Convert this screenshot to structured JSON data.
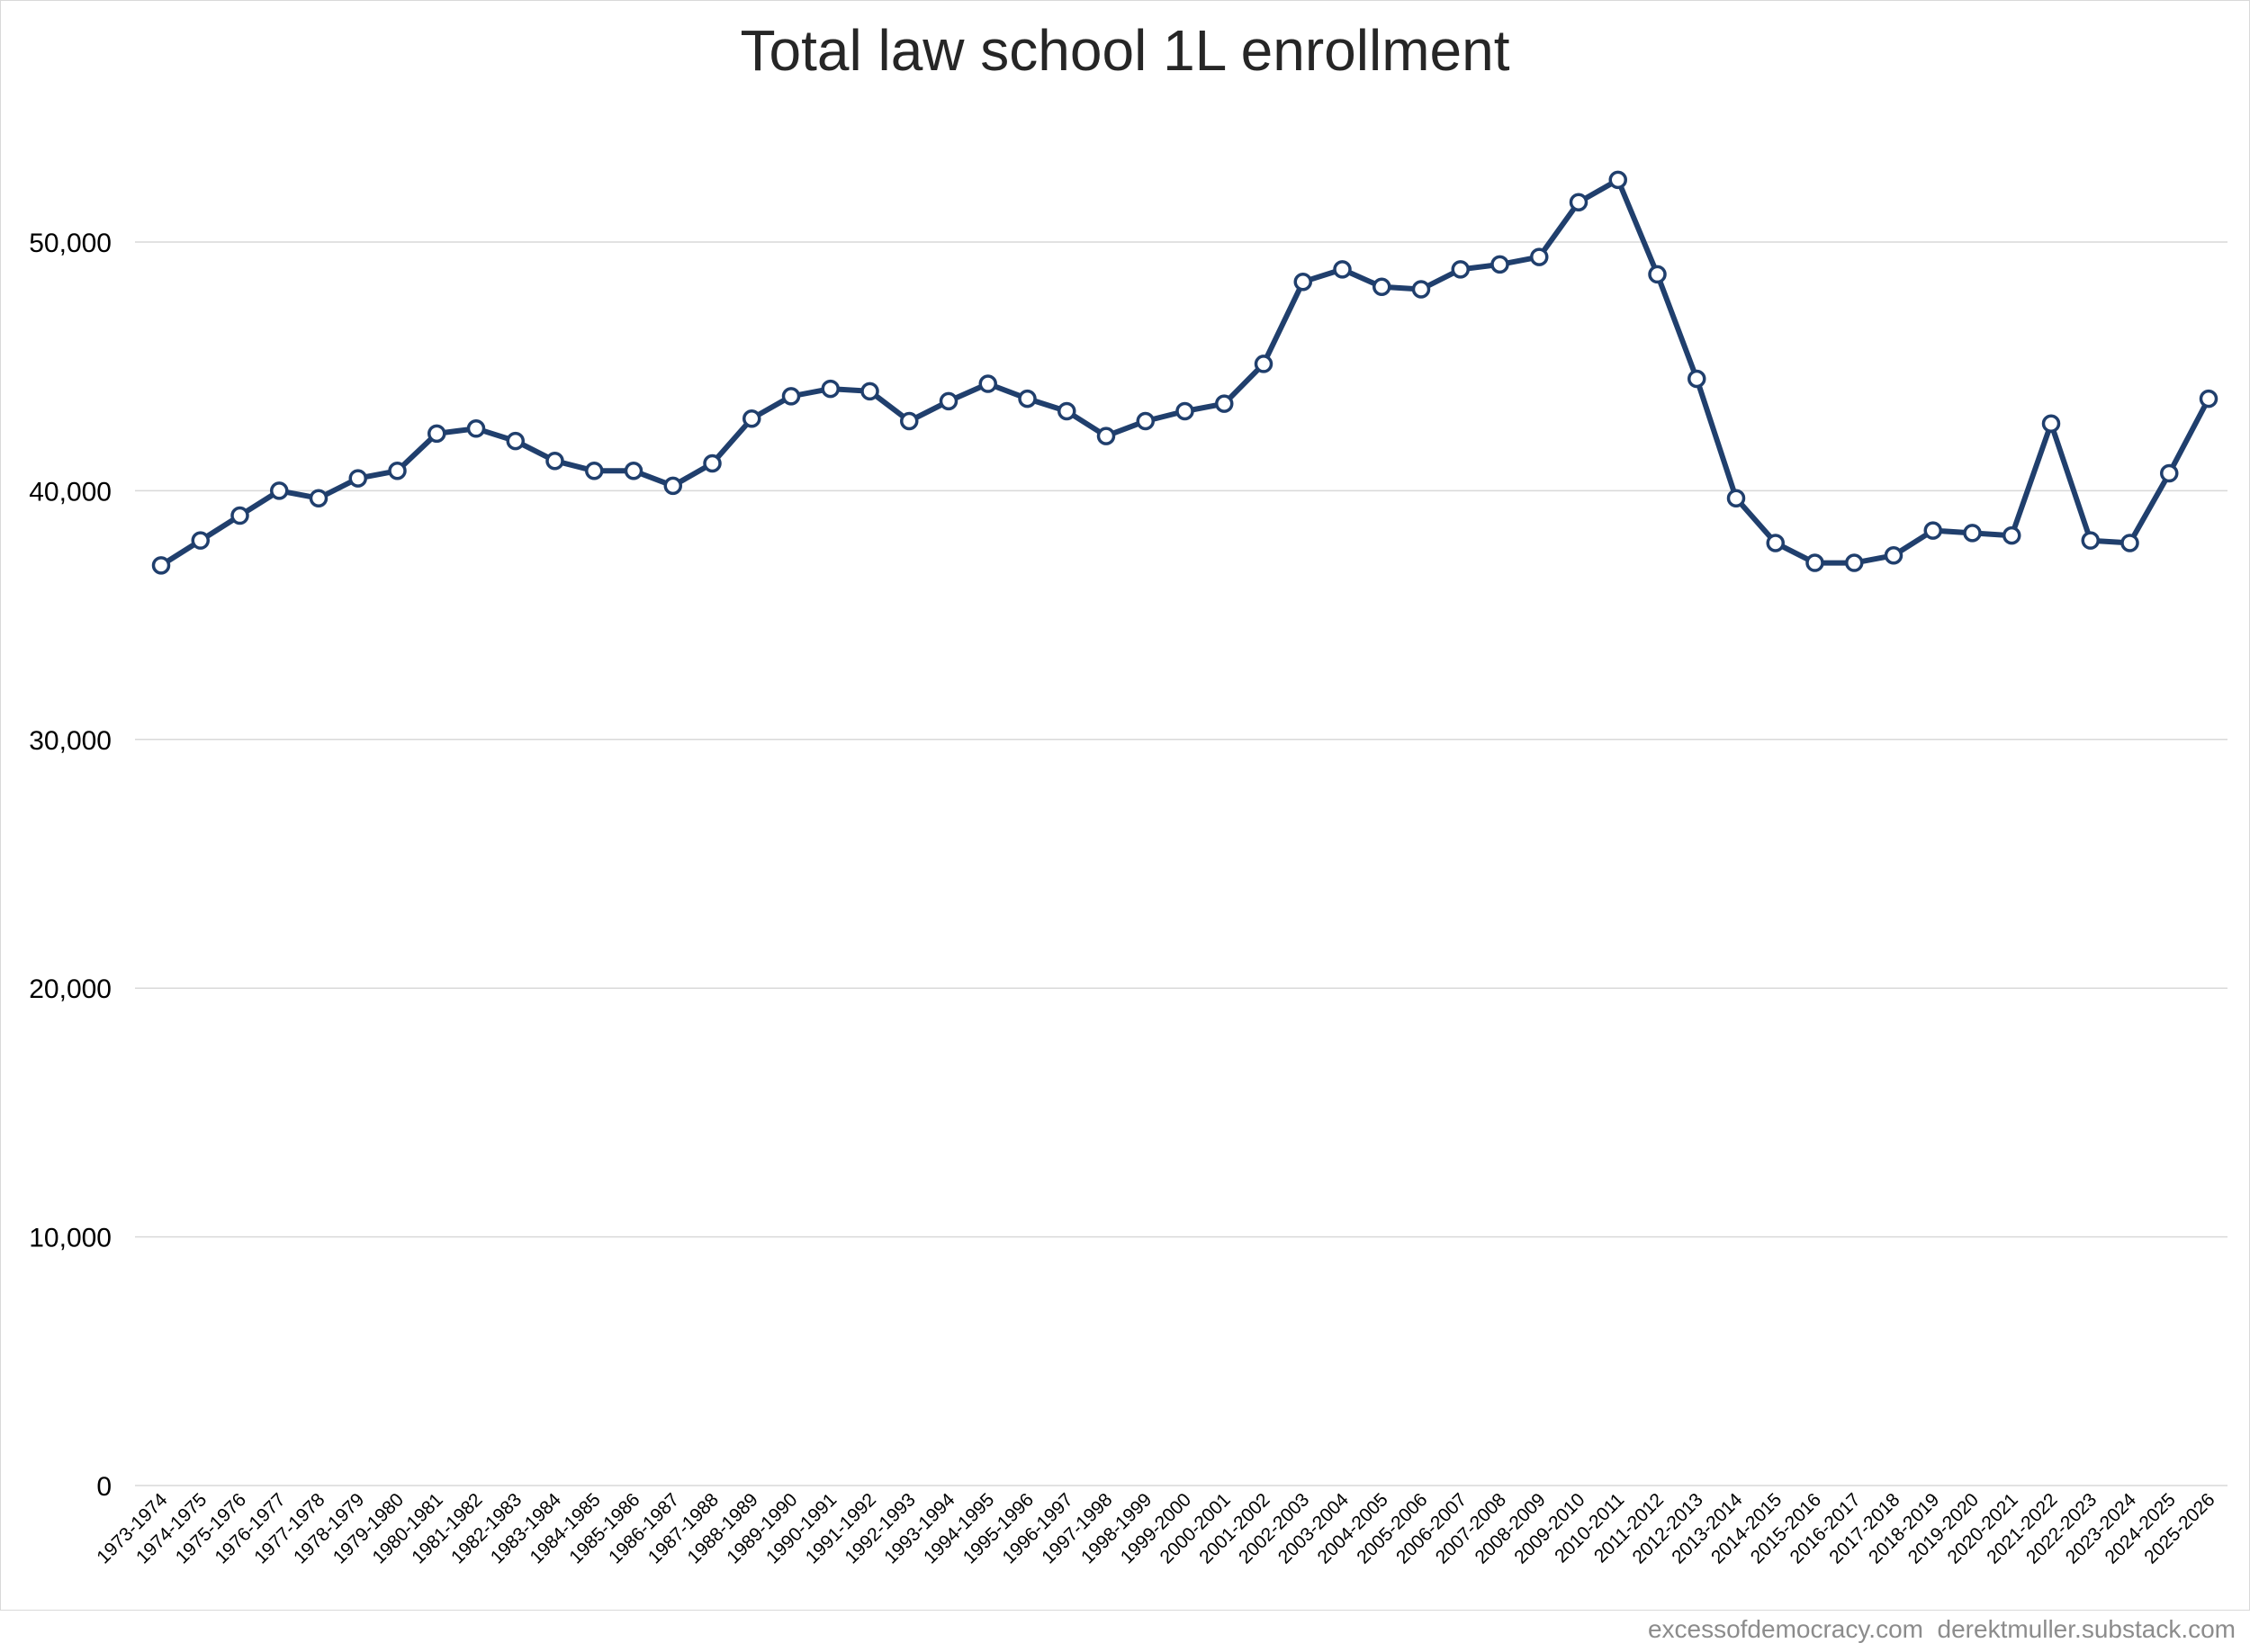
{
  "chart_data": {
    "type": "line",
    "title": "Total law school 1L enrollment",
    "xlabel": "",
    "ylabel": "",
    "ylim": [
      0,
      55000
    ],
    "yticks": [
      0,
      10000,
      20000,
      30000,
      40000,
      50000
    ],
    "ytick_labels": [
      "0",
      "10,000",
      "20,000",
      "30,000",
      "40,000",
      "50,000"
    ],
    "grid": true,
    "legend": "none",
    "line_color": "#203f6d",
    "marker_fill": "#ffffff",
    "categories": [
      "1973-1974",
      "1974-1975",
      "1975-1976",
      "1976-1977",
      "1977-1978",
      "1978-1979",
      "1979-1980",
      "1980-1981",
      "1981-1982",
      "1982-1983",
      "1983-1984",
      "1984-1985",
      "1985-1986",
      "1986-1987",
      "1987-1988",
      "1988-1989",
      "1989-1990",
      "1990-1991",
      "1991-1992",
      "1992-1993",
      "1993-1994",
      "1994-1995",
      "1995-1996",
      "1996-1997",
      "1997-1998",
      "1998-1999",
      "1999-2000",
      "2000-2001",
      "2001-2002",
      "2002-2003",
      "2003-2004",
      "2004-2005",
      "2005-2006",
      "2006-2007",
      "2007-2008",
      "2008-2009",
      "2009-2010",
      "2010-2011",
      "2011-2012",
      "2012-2013",
      "2013-2014",
      "2014-2015",
      "2015-2016",
      "2016-2017",
      "2017-2018",
      "2018-2019",
      "2019-2020",
      "2020-2021",
      "2021-2022",
      "2022-2023",
      "2023-2024",
      "2024-2025",
      "2025-2026"
    ],
    "series": [
      {
        "values": [
          37000,
          38000,
          39000,
          40000,
          39700,
          40500,
          40800,
          42300,
          42500,
          42000,
          41200,
          40800,
          40800,
          40200,
          41100,
          42900,
          43800,
          44100,
          44000,
          42800,
          43600,
          44300,
          43700,
          43200,
          42200,
          42800,
          43200,
          43500,
          45100,
          48400,
          48900,
          48200,
          48100,
          48900,
          49100,
          49400,
          51600,
          52500,
          48700,
          44500,
          39700,
          37900,
          37100,
          37100,
          37400,
          38400,
          38300,
          38200,
          42700,
          38000,
          37900,
          40700,
          43700
        ]
      }
    ]
  },
  "footer": {
    "credit": "excessofdemocracy.com  derektmuller.substack.com"
  }
}
